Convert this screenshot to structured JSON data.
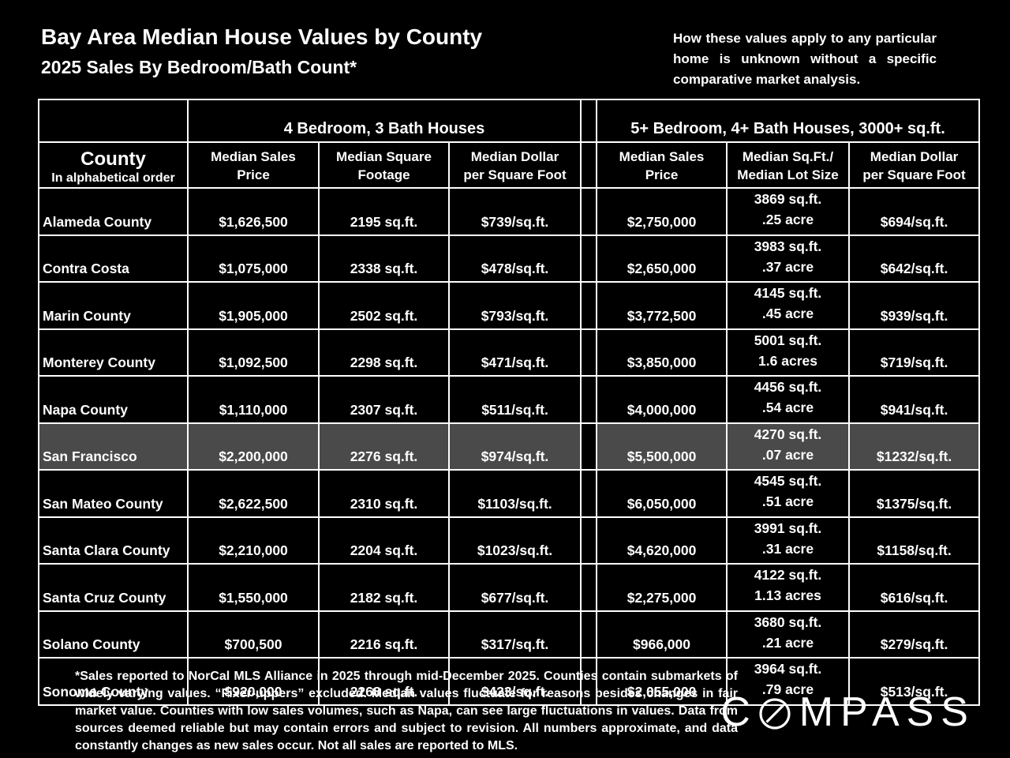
{
  "page": {
    "title": "Bay Area Median House Values by County",
    "subtitle": "2025 Sales By Bedroom/Bath Count*",
    "disclaimer": "How these values apply to any particular home is unknown without a specific comparative market analysis.",
    "footnote": "*Sales reported to NorCal MLS Alliance in 2025 through mid-December 2025. Counties contain submarkets of widely varying values. “Fixer-uppers” excluded. Median values fluctuate for reasons besides changes in fair market value. Counties with low sales volumes, such as Napa, can see large fluctuations in values. Data from sources deemed reliable but may contain errors and subject to revision.  All numbers approximate, and data constantly changes as new sales occur. Not all sales are reported to MLS.",
    "brand": "COMPASS"
  },
  "table": {
    "group_headers": [
      "4 Bedroom, 3 Bath Houses",
      "5+ Bedroom, 4+ Bath Houses, 3000+ sq.ft."
    ],
    "county_header": {
      "title": "County",
      "sub": "In alphabetical order"
    },
    "col_headers": [
      "Median Sales\nPrice",
      "Median Square\nFootage",
      "Median Dollar\nper Square Foot",
      "Median Sales\nPrice",
      "Median Sq.Ft./\nMedian Lot Size",
      "Median Dollar\nper Square Foot"
    ]
  },
  "chart_data": {
    "type": "table",
    "title": "Bay Area Median House Values by County",
    "subtitle": "2025 Sales By Bedroom/Bath Count*",
    "column_groups": [
      "",
      "4 Bedroom, 3 Bath Houses",
      "5+ Bedroom, 4+ Bath Houses, 3000+ sq.ft."
    ],
    "columns": [
      "County (In alphabetical order)",
      "Median Sales Price",
      "Median Square Footage",
      "Median Dollar per Square Foot",
      "Median Sales Price",
      "Median Sq.Ft./Median Lot Size",
      "Median Dollar per Square Foot"
    ],
    "highlighted_row": "San Francisco",
    "rows": [
      [
        "Alameda County",
        "$1,626,500",
        "2195 sq.ft.",
        "$739/sq.ft.",
        "$2,750,000",
        "3869 sq.ft.\n.25 acre",
        "$694/sq.ft."
      ],
      [
        "Contra Costa",
        "$1,075,000",
        "2338 sq.ft.",
        "$478/sq.ft.",
        "$2,650,000",
        "3983 sq.ft.\n.37 acre",
        "$642/sq.ft."
      ],
      [
        "Marin County",
        "$1,905,000",
        "2502 sq.ft.",
        "$793/sq.ft.",
        "$3,772,500",
        "4145 sq.ft.\n.45 acre",
        "$939/sq.ft."
      ],
      [
        "Monterey County",
        "$1,092,500",
        "2298 sq.ft.",
        "$471/sq.ft.",
        "$3,850,000",
        "5001 sq.ft.\n1.6 acres",
        "$719/sq.ft."
      ],
      [
        "Napa County",
        "$1,110,000",
        "2307 sq.ft.",
        "$511/sq.ft.",
        "$4,000,000",
        "4456 sq.ft.\n.54 acre",
        "$941/sq.ft."
      ],
      [
        "San Francisco",
        "$2,200,000",
        "2276 sq.ft.",
        "$974/sq.ft.",
        "$5,500,000",
        "4270 sq.ft.\n.07 acre",
        "$1232/sq.ft."
      ],
      [
        "San Mateo County",
        "$2,622,500",
        "2310 sq.ft.",
        "$1103/sq.ft.",
        "$6,050,000",
        "4545 sq.ft.\n.51 acre",
        "$1375/sq.ft."
      ],
      [
        "Santa Clara County",
        "$2,210,000",
        "2204 sq.ft.",
        "$1023/sq.ft.",
        "$4,620,000",
        "3991 sq.ft.\n.31 acre",
        "$1158/sq.ft."
      ],
      [
        "Santa Cruz County",
        "$1,550,000",
        "2182 sq.ft.",
        "$677/sq.ft.",
        "$2,275,000",
        "4122 sq.ft.\n1.13 acres",
        "$616/sq.ft."
      ],
      [
        "Solano County",
        "$700,500",
        "2216 sq.ft.",
        "$317/sq.ft.",
        "$966,000",
        "3680 sq.ft.\n.21 acre",
        "$279/sq.ft."
      ],
      [
        "Sonoma County",
        "$920,000",
        "2268 sq.ft.",
        "$423/sq.ft.",
        "$2,055,000",
        "3964 sq.ft.\n.79 acre",
        "$513/sq.ft."
      ]
    ]
  },
  "colors": {
    "background": "#000000",
    "text": "#ffffff",
    "grid": "#ffffff",
    "highlight_row": "#4a4a4a"
  }
}
